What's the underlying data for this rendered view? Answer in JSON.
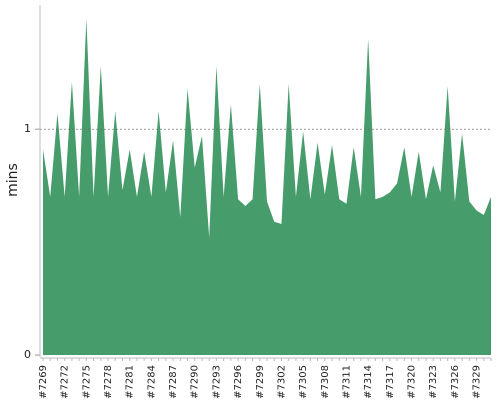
{
  "chart_data": {
    "type": "area",
    "y_label": "mins",
    "categories": [
      "#7269",
      null,
      null,
      "#7272",
      null,
      null,
      "#7275",
      null,
      null,
      "#7278",
      null,
      null,
      "#7281",
      null,
      null,
      "#7284",
      null,
      null,
      "#7287",
      null,
      null,
      "#7290",
      null,
      null,
      "#7293",
      null,
      null,
      "#7296",
      null,
      null,
      "#7299",
      null,
      null,
      "#7302",
      null,
      null,
      "#7305",
      null,
      null,
      "#7308",
      null,
      null,
      "#7311",
      null,
      null,
      "#7314",
      null,
      null,
      "#7317",
      null,
      null,
      "#7320",
      null,
      null,
      "#7323",
      null,
      null,
      "#7326",
      null,
      null,
      "#7329",
      null,
      null
    ],
    "values": [
      0.91,
      0.7,
      1.07,
      0.7,
      1.21,
      0.7,
      1.49,
      0.7,
      1.28,
      0.7,
      1.08,
      0.73,
      0.91,
      0.7,
      0.9,
      0.7,
      1.08,
      0.72,
      0.95,
      0.61,
      1.18,
      0.83,
      0.97,
      0.52,
      1.28,
      0.7,
      1.11,
      0.69,
      0.66,
      0.69,
      1.2,
      0.68,
      0.59,
      0.58,
      1.2,
      0.7,
      0.99,
      0.69,
      0.94,
      0.71,
      0.93,
      0.69,
      0.67,
      0.92,
      0.7,
      1.4,
      0.69,
      0.7,
      0.72,
      0.76,
      0.92,
      0.7,
      0.9,
      0.69,
      0.84,
      0.72,
      1.19,
      0.68,
      0.98,
      0.68,
      0.64,
      0.62,
      0.7
    ],
    "color": "#469c6b",
    "ylim": [
      0,
      1.55
    ],
    "yticks": [
      0,
      1
    ],
    "grid": true
  }
}
